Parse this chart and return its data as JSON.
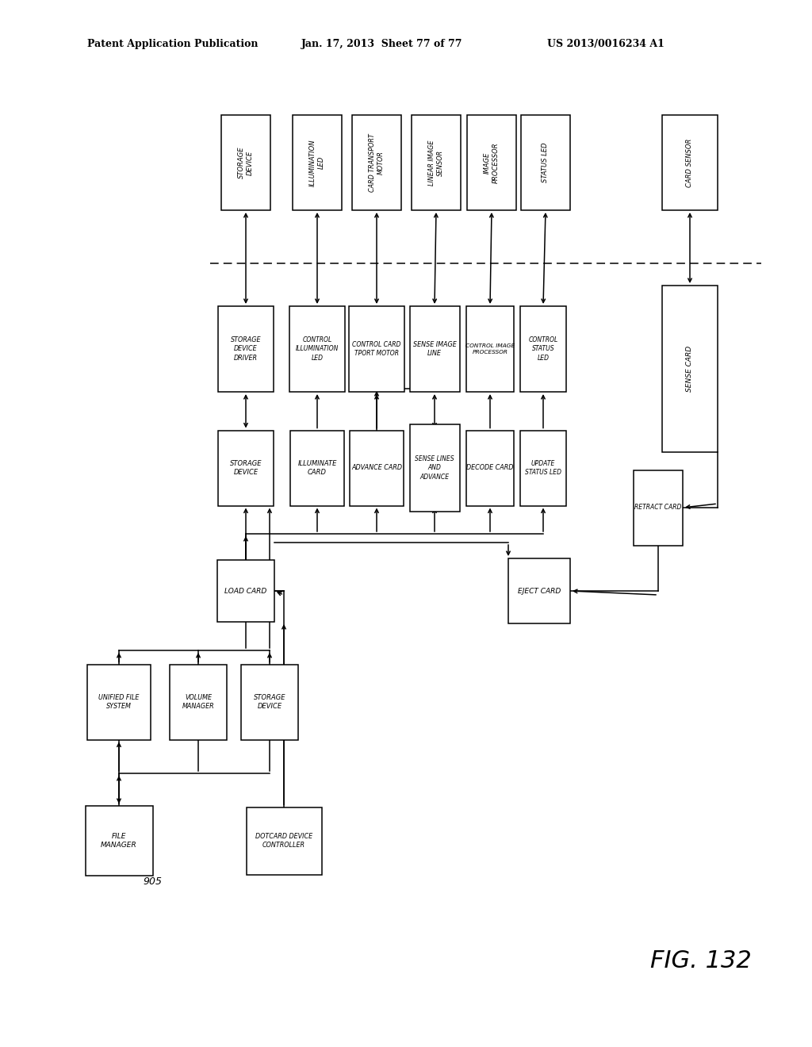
{
  "header_left": "Patent Application Publication",
  "header_mid": "Jan. 17, 2013  Sheet 77 of 77",
  "header_right": "US 2013/0016234 A1",
  "fig_label": "FIG. 132",
  "bg": "#ffffff",
  "ec": "#000000",
  "tc": "#000000"
}
